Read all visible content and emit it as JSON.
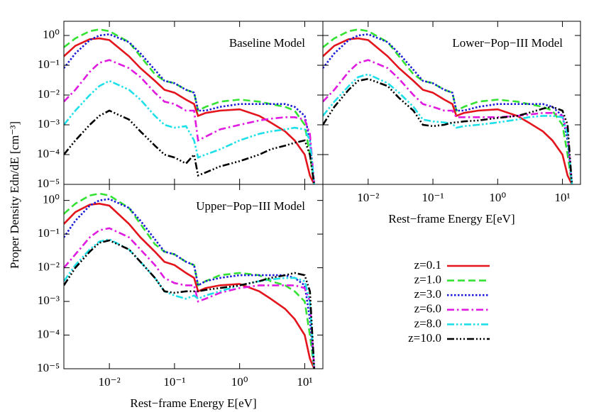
{
  "chart_data": [
    {
      "type": "line",
      "title": "Baseline Model",
      "log_x": true,
      "log_y": true,
      "legend": true,
      "ylabel": "Proper Density Edn/dE [cm⁻³]",
      "xlim": [
        0.002,
        19
      ],
      "ylim": [
        1e-05,
        3
      ],
      "xticks": [
        0.01,
        0.1,
        1,
        10
      ],
      "yticks": [
        {
          "value": 1e-05,
          "label": "10⁻⁵"
        },
        {
          "value": 0.0001,
          "label": "10⁻⁴"
        },
        {
          "value": 0.001,
          "label": "10⁻³"
        },
        {
          "value": 0.01,
          "label": "10⁻²"
        },
        {
          "value": 0.1,
          "label": "10⁻¹"
        },
        {
          "value": 1,
          "label": "10⁰"
        }
      ],
      "x": [
        0.002,
        0.003,
        0.005,
        0.007,
        0.01,
        0.02,
        0.03,
        0.05,
        0.07,
        0.1,
        0.15,
        0.2,
        0.23,
        0.3,
        0.5,
        1,
        2,
        3,
        5,
        7,
        10,
        12,
        14
      ],
      "series": [
        {
          "name": "z=0.1",
          "color": "#e3141c",
          "style": "solid",
          "values": [
            0.2,
            0.45,
            0.75,
            0.8,
            0.7,
            0.2,
            0.08,
            0.03,
            0.015,
            0.012,
            0.007,
            0.005,
            0.002,
            0.0025,
            0.003,
            0.0033,
            0.002,
            0.0012,
            0.0006,
            0.0003,
            0.0001,
            2e-05,
            1e-05
          ]
        },
        {
          "name": "z=1.0",
          "color": "#33e233",
          "style": "dashed",
          "values": [
            0.4,
            0.8,
            1.4,
            1.6,
            1.4,
            0.6,
            0.2,
            0.05,
            0.03,
            0.025,
            0.015,
            0.012,
            0.003,
            0.004,
            0.006,
            0.007,
            0.006,
            0.005,
            0.004,
            0.003,
            0.001,
            0.0001,
            1e-05
          ]
        },
        {
          "name": "z=3.0",
          "color": "#1a1ad8",
          "style": "dotted",
          "values": [
            0.08,
            0.25,
            0.7,
            1.0,
            1.1,
            0.6,
            0.25,
            0.07,
            0.03,
            0.025,
            0.015,
            0.012,
            0.003,
            0.003,
            0.004,
            0.005,
            0.005,
            0.005,
            0.005,
            0.004,
            0.002,
            0.0003,
            1e-05
          ]
        },
        {
          "name": "z=6.0",
          "color": "#e01ae0",
          "style": "dashdot",
          "values": [
            0.006,
            0.015,
            0.06,
            0.12,
            0.15,
            0.08,
            0.04,
            0.012,
            0.006,
            0.005,
            0.003,
            0.003,
            0.0003,
            0.0004,
            0.0007,
            0.001,
            0.0014,
            0.0016,
            0.0018,
            0.0018,
            0.0015,
            0.0005,
            1e-05
          ]
        },
        {
          "name": "z=8.0",
          "color": "#1ee0e8",
          "style": "dashdotdot",
          "values": [
            0.001,
            0.003,
            0.01,
            0.02,
            0.03,
            0.015,
            0.007,
            0.002,
            0.001,
            0.0008,
            0.0009,
            0.0003,
            8e-05,
            0.0001,
            0.00015,
            0.0003,
            0.0005,
            0.0006,
            0.0007,
            0.0008,
            0.0007,
            0.0003,
            1e-05
          ]
        },
        {
          "name": "z=10.0",
          "color": "#000000",
          "style": "dashdotdotdot",
          "values": [
            0.0001,
            0.0003,
            0.001,
            0.002,
            0.003,
            0.0015,
            0.0006,
            0.0002,
            0.0001,
            8e-05,
            5e-05,
            0.0001,
            2e-05,
            2.5e-05,
            4e-05,
            6e-05,
            0.0001,
            0.00015,
            0.0002,
            0.00025,
            0.0003,
            0.0001,
            1e-05
          ]
        }
      ]
    },
    {
      "type": "line",
      "title": "Lower−Pop−III Model",
      "log_x": true,
      "log_y": true,
      "xlabel": "Rest−frame Energy E[eV]",
      "xlim": [
        0.002,
        19
      ],
      "ylim": [
        1e-05,
        3
      ],
      "xticks": [
        {
          "value": 0.01,
          "label": "10⁻²"
        },
        {
          "value": 0.1,
          "label": "10⁻¹"
        },
        {
          "value": 1,
          "label": "10⁰"
        },
        {
          "value": 10,
          "label": "10¹"
        }
      ],
      "yticks": [
        1e-05,
        0.0001,
        0.001,
        0.01,
        0.1,
        1
      ],
      "x": [
        0.002,
        0.003,
        0.005,
        0.007,
        0.01,
        0.02,
        0.03,
        0.05,
        0.07,
        0.1,
        0.15,
        0.2,
        0.23,
        0.3,
        0.5,
        1,
        2,
        3,
        5,
        7,
        10,
        12,
        14
      ],
      "series": [
        {
          "name": "z=0.1",
          "color": "#e3141c",
          "style": "solid",
          "values": [
            0.2,
            0.45,
            0.75,
            0.8,
            0.7,
            0.2,
            0.08,
            0.03,
            0.015,
            0.012,
            0.007,
            0.005,
            0.002,
            0.0025,
            0.003,
            0.0033,
            0.002,
            0.0012,
            0.0006,
            0.0003,
            0.0001,
            2e-05,
            1e-05
          ]
        },
        {
          "name": "z=1.0",
          "color": "#33e233",
          "style": "dashed",
          "values": [
            0.4,
            0.8,
            1.4,
            1.6,
            1.4,
            0.6,
            0.2,
            0.05,
            0.03,
            0.025,
            0.015,
            0.012,
            0.003,
            0.004,
            0.006,
            0.007,
            0.006,
            0.005,
            0.004,
            0.003,
            0.001,
            0.0001,
            1e-05
          ]
        },
        {
          "name": "z=3.0",
          "color": "#1a1ad8",
          "style": "dotted",
          "values": [
            0.08,
            0.25,
            0.7,
            1.0,
            1.1,
            0.6,
            0.25,
            0.07,
            0.03,
            0.025,
            0.015,
            0.012,
            0.003,
            0.003,
            0.004,
            0.005,
            0.005,
            0.005,
            0.005,
            0.004,
            0.002,
            0.0003,
            1e-05
          ]
        },
        {
          "name": "z=6.0",
          "color": "#e01ae0",
          "style": "dashdot",
          "values": [
            0.006,
            0.015,
            0.06,
            0.12,
            0.15,
            0.08,
            0.035,
            0.01,
            0.005,
            0.004,
            0.003,
            0.003,
            0.0018,
            0.0018,
            0.0018,
            0.0018,
            0.002,
            0.0022,
            0.0025,
            0.0025,
            0.002,
            0.0005,
            1e-05
          ]
        },
        {
          "name": "z=8.0",
          "color": "#1ee0e8",
          "style": "dashdotdot",
          "values": [
            0.002,
            0.006,
            0.02,
            0.04,
            0.05,
            0.025,
            0.012,
            0.004,
            0.0015,
            0.0013,
            0.0012,
            0.0011,
            0.0008,
            0.0009,
            0.001,
            0.0012,
            0.0015,
            0.0018,
            0.002,
            0.002,
            0.0018,
            0.0005,
            1e-05
          ]
        },
        {
          "name": "z=10.0",
          "color": "#000000",
          "style": "dashdotdotdot",
          "values": [
            0.001,
            0.004,
            0.015,
            0.03,
            0.035,
            0.02,
            0.008,
            0.003,
            0.001,
            0.0009,
            0.001,
            0.0012,
            0.0012,
            0.0013,
            0.0014,
            0.0017,
            0.002,
            0.0025,
            0.0035,
            0.004,
            0.003,
            0.001,
            1e-05
          ]
        }
      ]
    },
    {
      "type": "line",
      "title": "Upper−Pop−III Model",
      "log_x": true,
      "log_y": true,
      "xlabel": "Rest−frame Energy E[eV]",
      "xlim": [
        0.002,
        19
      ],
      "ylim": [
        1e-05,
        3
      ],
      "xticks": [
        {
          "value": 0.01,
          "label": "10⁻²"
        },
        {
          "value": 0.1,
          "label": "10⁻¹"
        },
        {
          "value": 1,
          "label": "10⁰"
        },
        {
          "value": 10,
          "label": "10¹"
        }
      ],
      "yticks": [
        {
          "value": 1e-05,
          "label": "10⁻⁵"
        },
        {
          "value": 0.0001,
          "label": "10⁻⁴"
        },
        {
          "value": 0.001,
          "label": "10⁻³"
        },
        {
          "value": 0.01,
          "label": "10⁻²"
        },
        {
          "value": 0.1,
          "label": "10⁻¹"
        },
        {
          "value": 1,
          "label": "10⁰"
        }
      ],
      "x": [
        0.002,
        0.003,
        0.005,
        0.007,
        0.01,
        0.02,
        0.03,
        0.05,
        0.07,
        0.1,
        0.15,
        0.2,
        0.23,
        0.3,
        0.5,
        1,
        2,
        3,
        5,
        7,
        10,
        12,
        14
      ],
      "series": [
        {
          "name": "z=0.1",
          "color": "#e3141c",
          "style": "solid",
          "values": [
            0.2,
            0.45,
            0.75,
            0.8,
            0.7,
            0.2,
            0.08,
            0.03,
            0.015,
            0.012,
            0.007,
            0.005,
            0.002,
            0.0025,
            0.003,
            0.0033,
            0.002,
            0.0012,
            0.0006,
            0.0003,
            0.0001,
            2e-05,
            1e-05
          ]
        },
        {
          "name": "z=1.0",
          "color": "#33e233",
          "style": "dashed",
          "values": [
            0.4,
            0.8,
            1.4,
            1.6,
            1.4,
            0.6,
            0.2,
            0.05,
            0.03,
            0.025,
            0.015,
            0.012,
            0.003,
            0.004,
            0.006,
            0.007,
            0.006,
            0.004,
            0.003,
            0.002,
            0.001,
            0.0001,
            1e-05
          ]
        },
        {
          "name": "z=3.0",
          "color": "#1a1ad8",
          "style": "dotted",
          "values": [
            0.08,
            0.25,
            0.7,
            1.0,
            1.1,
            0.6,
            0.25,
            0.07,
            0.03,
            0.025,
            0.015,
            0.012,
            0.003,
            0.004,
            0.005,
            0.006,
            0.006,
            0.006,
            0.006,
            0.005,
            0.003,
            0.0003,
            1e-05
          ]
        },
        {
          "name": "z=6.0",
          "color": "#e01ae0",
          "style": "dashdot",
          "values": [
            0.01,
            0.025,
            0.08,
            0.13,
            0.15,
            0.08,
            0.035,
            0.012,
            0.005,
            0.0035,
            0.003,
            0.003,
            0.001,
            0.0012,
            0.0018,
            0.0025,
            0.003,
            0.003,
            0.003,
            0.003,
            0.0025,
            0.001,
            1e-05
          ]
        },
        {
          "name": "z=8.0",
          "color": "#1ee0e8",
          "style": "dashdotdot",
          "values": [
            0.004,
            0.012,
            0.035,
            0.06,
            0.07,
            0.035,
            0.015,
            0.005,
            0.002,
            0.0015,
            0.0012,
            0.0015,
            0.0012,
            0.0015,
            0.002,
            0.003,
            0.004,
            0.0045,
            0.005,
            0.005,
            0.004,
            0.001,
            1e-05
          ]
        },
        {
          "name": "z=10.0",
          "color": "#000000",
          "style": "dashdotdotdot",
          "values": [
            0.003,
            0.01,
            0.03,
            0.055,
            0.065,
            0.035,
            0.015,
            0.005,
            0.002,
            0.0018,
            0.002,
            0.002,
            0.002,
            0.0022,
            0.0025,
            0.003,
            0.004,
            0.005,
            0.006,
            0.007,
            0.006,
            0.002,
            1e-05
          ]
        }
      ]
    }
  ]
}
